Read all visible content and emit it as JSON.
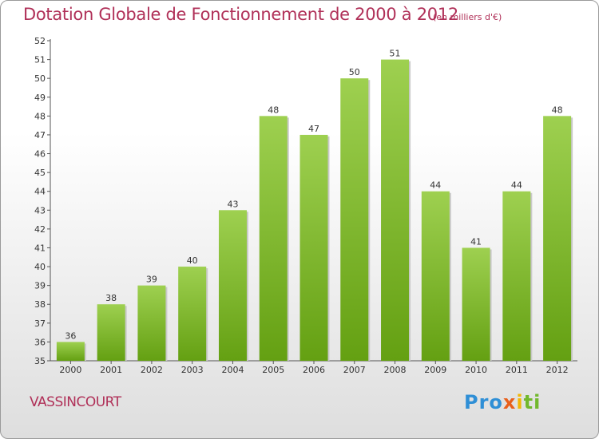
{
  "title": "Dotation Globale de Fonctionnement de 2000 à 2012",
  "subtitle": "(en milliers d'€)",
  "commune": "VASSINCOURT",
  "logo": {
    "part1": "Pro",
    "part2": "x",
    "part3": "i",
    "part4": "ti"
  },
  "colors": {
    "bar_top": "#9ed050",
    "bar_bottom": "#64a012",
    "title": "#b03058"
  },
  "chart_data": {
    "type": "bar",
    "categories": [
      "2000",
      "2001",
      "2002",
      "2003",
      "2004",
      "2005",
      "2006",
      "2007",
      "2008",
      "2009",
      "2010",
      "2011",
      "2012"
    ],
    "values": [
      36,
      38,
      39,
      40,
      43,
      48,
      47,
      50,
      51,
      44,
      41,
      44,
      48
    ],
    "ylim": [
      35,
      52
    ],
    "yticks": [
      35,
      36,
      37,
      38,
      39,
      40,
      41,
      42,
      43,
      44,
      45,
      46,
      47,
      48,
      49,
      50,
      51,
      52
    ],
    "grid": false,
    "data_labels": true
  }
}
